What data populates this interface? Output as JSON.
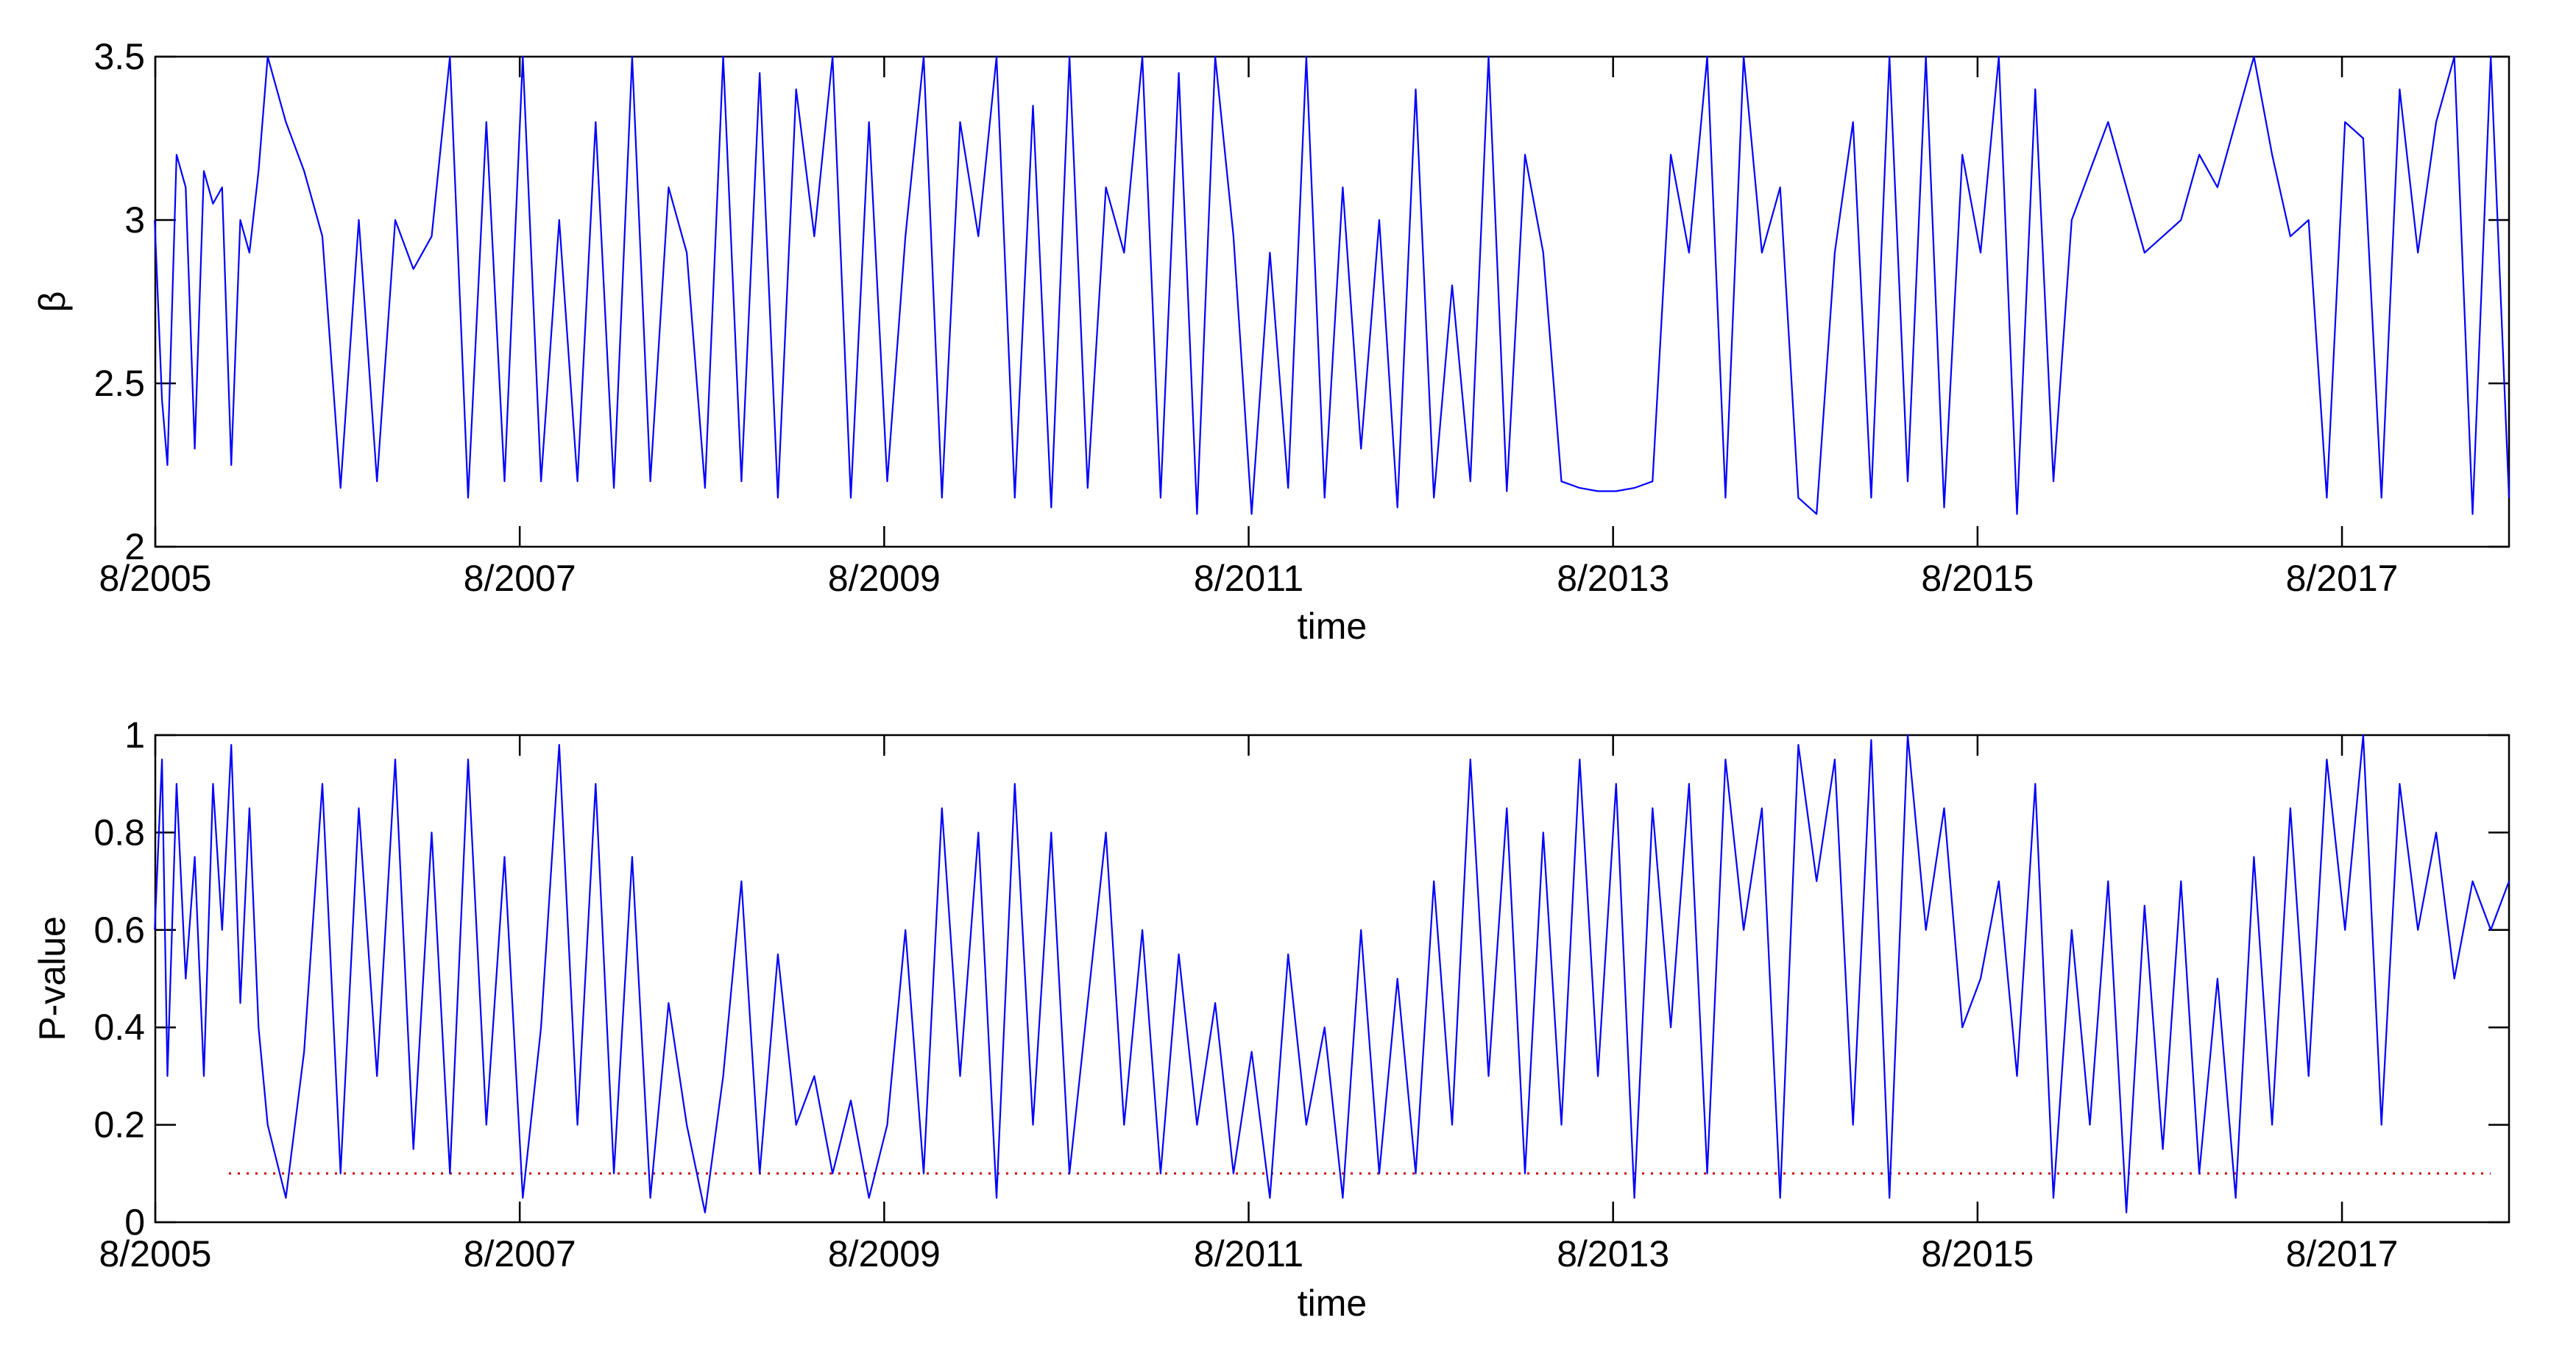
{
  "chart_data": [
    {
      "type": "line",
      "xlabel": "time",
      "ylabel": "β",
      "xlim": [
        "8/2005",
        "7/2018"
      ],
      "ylim": [
        2,
        3.5
      ],
      "xticks": [
        "8/2005",
        "8/2007",
        "8/2009",
        "8/2011",
        "8/2013",
        "8/2015",
        "8/2017"
      ],
      "yticks": [
        "2",
        "2.5",
        "3",
        "3.5"
      ],
      "grid": false,
      "series": [
        {
          "color": "#0000ff",
          "x_format": "decimal year",
          "x": [
            2005.58,
            2005.62,
            2005.65,
            2005.7,
            2005.75,
            2005.8,
            2005.85,
            2005.9,
            2005.95,
            2006.0,
            2006.05,
            2006.1,
            2006.15,
            2006.2,
            2006.3,
            2006.4,
            2006.5,
            2006.6,
            2006.7,
            2006.8,
            2006.9,
            2007.0,
            2007.1,
            2007.2,
            2007.3,
            2007.4,
            2007.5,
            2007.6,
            2007.7,
            2007.8,
            2007.9,
            2008.0,
            2008.1,
            2008.2,
            2008.3,
            2008.4,
            2008.5,
            2008.6,
            2008.7,
            2008.8,
            2008.9,
            2009.0,
            2009.1,
            2009.2,
            2009.3,
            2009.4,
            2009.5,
            2009.6,
            2009.7,
            2009.8,
            2009.9,
            2010.0,
            2010.1,
            2010.2,
            2010.3,
            2010.4,
            2010.5,
            2010.6,
            2010.7,
            2010.8,
            2010.9,
            2011.0,
            2011.1,
            2011.2,
            2011.3,
            2011.4,
            2011.5,
            2011.6,
            2011.7,
            2011.8,
            2011.9,
            2012.0,
            2012.1,
            2012.2,
            2012.3,
            2012.4,
            2012.5,
            2012.6,
            2012.7,
            2012.8,
            2012.9,
            2013.0,
            2013.1,
            2013.2,
            2013.3,
            2013.4,
            2013.5,
            2013.6,
            2013.7,
            2013.8,
            2013.9,
            2014.0,
            2014.1,
            2014.2,
            2014.3,
            2014.4,
            2014.5,
            2014.6,
            2014.7,
            2014.8,
            2014.9,
            2015.0,
            2015.1,
            2015.2,
            2015.3,
            2015.4,
            2015.5,
            2015.6,
            2015.7,
            2015.8,
            2015.9,
            2016.0,
            2016.1,
            2016.2,
            2016.3,
            2016.4,
            2016.5,
            2016.6,
            2016.7,
            2016.8,
            2016.9,
            2017.0,
            2017.1,
            2017.2,
            2017.3,
            2017.4,
            2017.5,
            2017.6,
            2017.7,
            2017.8,
            2017.9,
            2018.0,
            2018.1,
            2018.2,
            2018.3,
            2018.4,
            2018.5
          ],
          "y": [
            3.0,
            2.45,
            2.25,
            3.2,
            3.1,
            2.3,
            3.15,
            3.05,
            3.1,
            2.25,
            3.0,
            2.9,
            3.15,
            3.5,
            3.3,
            3.15,
            2.95,
            2.18,
            3.0,
            2.2,
            3.0,
            2.85,
            2.95,
            3.5,
            2.15,
            3.3,
            2.2,
            3.5,
            2.2,
            3.0,
            2.2,
            3.3,
            2.18,
            3.5,
            2.2,
            3.1,
            2.9,
            2.18,
            3.5,
            2.2,
            3.45,
            2.15,
            3.4,
            2.95,
            3.5,
            2.15,
            3.3,
            2.2,
            2.95,
            3.5,
            2.15,
            3.3,
            2.95,
            3.5,
            2.15,
            3.35,
            2.12,
            3.5,
            2.18,
            3.1,
            2.9,
            3.5,
            2.15,
            3.45,
            2.1,
            3.5,
            2.95,
            2.1,
            2.9,
            2.18,
            3.5,
            2.15,
            3.1,
            2.3,
            3.0,
            2.12,
            3.4,
            2.15,
            2.8,
            2.2,
            3.5,
            2.17,
            3.2,
            2.9,
            2.2,
            2.18,
            2.17,
            2.17,
            2.18,
            2.2,
            3.2,
            2.9,
            3.5,
            2.15,
            3.5,
            2.9,
            3.1,
            2.15,
            2.1,
            2.9,
            3.3,
            2.15,
            3.5,
            2.2,
            3.5,
            2.12,
            3.2,
            2.9,
            3.5,
            2.1,
            3.4,
            2.2,
            3.0,
            3.15,
            3.3,
            3.1,
            2.9,
            2.95,
            3.0,
            3.2,
            3.1,
            3.3,
            3.5,
            3.2,
            2.95,
            3.0,
            2.15,
            3.3,
            3.25,
            2.15,
            3.4,
            2.9,
            3.3,
            3.5,
            2.1,
            3.5,
            2.15
          ]
        }
      ]
    },
    {
      "type": "line",
      "xlabel": "time",
      "ylabel": "P-value",
      "xlim": [
        "8/2005",
        "7/2018"
      ],
      "ylim": [
        0,
        1
      ],
      "xticks": [
        "8/2005",
        "8/2007",
        "8/2009",
        "8/2011",
        "8/2013",
        "8/2015",
        "8/2017"
      ],
      "yticks": [
        "0",
        "0.2",
        "0.4",
        "0.6",
        "0.8",
        "1"
      ],
      "grid": false,
      "threshold": {
        "value": 0.1,
        "color": "#cc0000",
        "style": "dotted"
      },
      "series": [
        {
          "color": "#0000ff",
          "x_format": "decimal year",
          "x": [
            2005.58,
            2005.62,
            2005.65,
            2005.7,
            2005.75,
            2005.8,
            2005.85,
            2005.9,
            2005.95,
            2006.0,
            2006.05,
            2006.1,
            2006.15,
            2006.2,
            2006.3,
            2006.4,
            2006.5,
            2006.6,
            2006.7,
            2006.8,
            2006.9,
            2007.0,
            2007.1,
            2007.2,
            2007.3,
            2007.4,
            2007.5,
            2007.6,
            2007.7,
            2007.8,
            2007.9,
            2008.0,
            2008.1,
            2008.2,
            2008.3,
            2008.4,
            2008.5,
            2008.6,
            2008.7,
            2008.8,
            2008.9,
            2009.0,
            2009.1,
            2009.2,
            2009.3,
            2009.4,
            2009.5,
            2009.6,
            2009.7,
            2009.8,
            2009.9,
            2010.0,
            2010.1,
            2010.2,
            2010.3,
            2010.4,
            2010.5,
            2010.6,
            2010.7,
            2010.8,
            2010.9,
            2011.0,
            2011.1,
            2011.2,
            2011.3,
            2011.4,
            2011.5,
            2011.6,
            2011.7,
            2011.8,
            2011.9,
            2012.0,
            2012.1,
            2012.2,
            2012.3,
            2012.4,
            2012.5,
            2012.6,
            2012.7,
            2012.8,
            2012.9,
            2013.0,
            2013.1,
            2013.2,
            2013.3,
            2013.4,
            2013.5,
            2013.6,
            2013.7,
            2013.8,
            2013.9,
            2014.0,
            2014.1,
            2014.2,
            2014.3,
            2014.4,
            2014.5,
            2014.6,
            2014.7,
            2014.8,
            2014.9,
            2015.0,
            2015.1,
            2015.2,
            2015.3,
            2015.4,
            2015.5,
            2015.6,
            2015.7,
            2015.8,
            2015.9,
            2016.0,
            2016.1,
            2016.2,
            2016.3,
            2016.4,
            2016.5,
            2016.6,
            2016.7,
            2016.8,
            2016.9,
            2017.0,
            2017.1,
            2017.2,
            2017.3,
            2017.4,
            2017.5,
            2017.6,
            2017.7,
            2017.8,
            2017.9,
            2018.0,
            2018.1,
            2018.2,
            2018.3,
            2018.4,
            2018.5
          ],
          "y": [
            0.6,
            0.95,
            0.3,
            0.9,
            0.5,
            0.75,
            0.3,
            0.9,
            0.6,
            0.98,
            0.45,
            0.85,
            0.4,
            0.2,
            0.05,
            0.35,
            0.9,
            0.1,
            0.85,
            0.3,
            0.95,
            0.15,
            0.8,
            0.1,
            0.95,
            0.2,
            0.75,
            0.05,
            0.4,
            0.98,
            0.2,
            0.9,
            0.1,
            0.75,
            0.05,
            0.45,
            0.2,
            0.02,
            0.3,
            0.7,
            0.1,
            0.55,
            0.2,
            0.3,
            0.1,
            0.25,
            0.05,
            0.2,
            0.6,
            0.1,
            0.85,
            0.3,
            0.8,
            0.05,
            0.9,
            0.2,
            0.8,
            0.1,
            0.45,
            0.8,
            0.2,
            0.6,
            0.1,
            0.55,
            0.2,
            0.45,
            0.1,
            0.35,
            0.05,
            0.55,
            0.2,
            0.4,
            0.05,
            0.6,
            0.1,
            0.5,
            0.1,
            0.7,
            0.2,
            0.95,
            0.3,
            0.85,
            0.1,
            0.8,
            0.2,
            0.95,
            0.3,
            0.9,
            0.05,
            0.85,
            0.4,
            0.9,
            0.1,
            0.95,
            0.6,
            0.85,
            0.05,
            0.98,
            0.7,
            0.95,
            0.2,
            0.99,
            0.05,
            1.0,
            0.6,
            0.85,
            0.4,
            0.5,
            0.7,
            0.3,
            0.9,
            0.05,
            0.6,
            0.2,
            0.7,
            0.02,
            0.65,
            0.15,
            0.7,
            0.1,
            0.5,
            0.05,
            0.75,
            0.2,
            0.85,
            0.3,
            0.95,
            0.6,
            1.0,
            0.2,
            0.9,
            0.6,
            0.8,
            0.5,
            0.7,
            0.6,
            0.7
          ]
        }
      ]
    }
  ]
}
